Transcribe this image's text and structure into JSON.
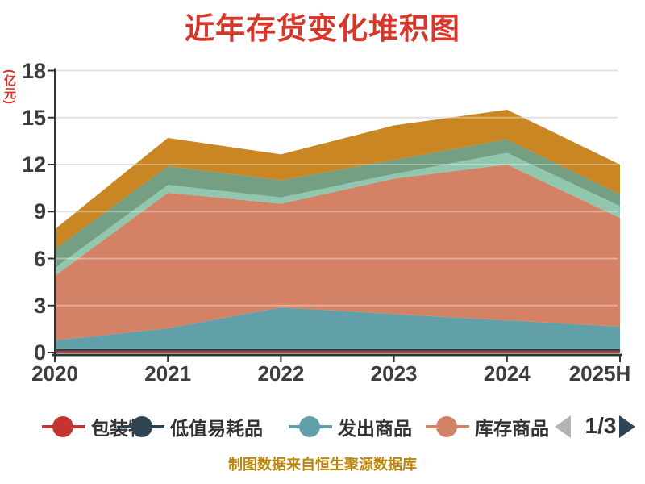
{
  "title": "近年存货变化堆积图",
  "y_unit": "(亿元)",
  "footer": "制图数据来自恒生聚源数据库",
  "legend": {
    "items": [
      {
        "label": "包装物",
        "color": "#c23531"
      },
      {
        "label": "低值易耗品",
        "color": "#2f4554"
      },
      {
        "label": "发出商品",
        "color": "#61a0a8"
      },
      {
        "label": "库存商品",
        "color": "#d48265"
      }
    ],
    "pager": {
      "text": "1/3",
      "prev_color": "#b4b4b4",
      "next_color": "#2f4554"
    }
  },
  "chart_data": {
    "type": "area",
    "stacked": true,
    "title": "近年存货变化堆积图",
    "ylabel": "(亿元)",
    "ylim": [
      0,
      18
    ],
    "y_ticks": [
      0,
      3,
      6,
      9,
      12,
      15,
      18
    ],
    "grid": true,
    "legend_position": "bottom",
    "categories": [
      "2020",
      "2021",
      "2022",
      "2023",
      "2024",
      "2025H"
    ],
    "series": [
      {
        "name": "包装物",
        "color": "#c23531",
        "values": [
          0.1,
          0.1,
          0.1,
          0.1,
          0.1,
          0.1
        ]
      },
      {
        "name": "低值易耗品",
        "color": "#2f4554",
        "values": [
          0.12,
          0.12,
          0.12,
          0.12,
          0.12,
          0.12
        ]
      },
      {
        "name": "发出商品",
        "color": "#61a0a8",
        "values": [
          0.55,
          1.33,
          2.66,
          2.23,
          1.83,
          1.43
        ]
      },
      {
        "name": "库存商品",
        "color": "#d48265",
        "values": [
          4.12,
          8.65,
          6.62,
          8.65,
          9.95,
          6.95
        ]
      },
      {
        "name": "",
        "color": "#91c7ae",
        "values": [
          0.51,
          0.5,
          0.4,
          0.3,
          0.75,
          0.75
        ]
      },
      {
        "name": "",
        "color": "#749f83",
        "values": [
          1.2,
          1.2,
          1.1,
          0.9,
          0.85,
          0.75
        ]
      },
      {
        "name": "",
        "color": "#ca8622",
        "values": [
          1.27,
          1.8,
          1.65,
          2.2,
          1.9,
          1.9
        ]
      }
    ]
  },
  "colors": {
    "title": "#d7362a",
    "y_unit": "#e02c21",
    "tick_label": "#3d3d3d",
    "axis": "#333333",
    "gridline": "#d3d3d3",
    "footer": "#b8860b",
    "background": "#ffffff"
  }
}
